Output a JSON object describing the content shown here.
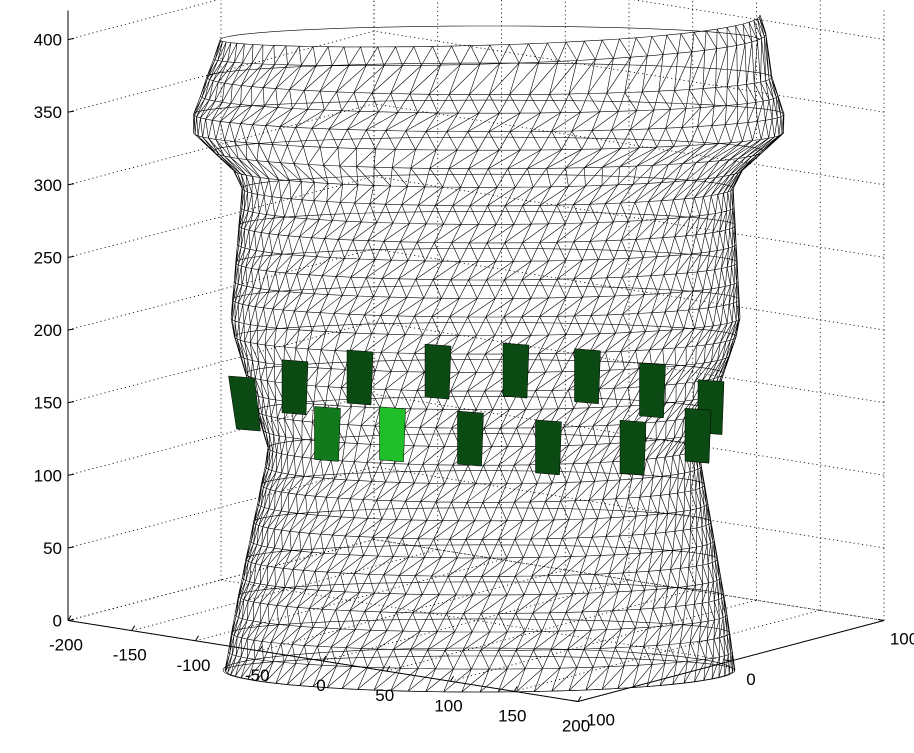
{
  "chart_data": {
    "type": "3d-wireframe-surface",
    "title": "",
    "xlabel": "",
    "ylabel": "",
    "zlabel": "",
    "grid": true,
    "xlim": [
      -200,
      200
    ],
    "ylim": [
      -100,
      100
    ],
    "zlim": [
      0,
      420
    ],
    "x_ticks": [
      -200,
      -150,
      -100,
      -50,
      0,
      50,
      100,
      150,
      200
    ],
    "y_ticks": [
      -100,
      0,
      100
    ],
    "z_ticks": [
      0,
      50,
      100,
      150,
      200,
      250,
      300,
      350,
      400
    ],
    "mesh_color": "#000000",
    "patch_colors": {
      "dark": "#0b4a12",
      "medium": "#127a1c",
      "bright": "#1fbf2a"
    },
    "patches_upper_row": [
      {
        "x": -185,
        "z": 185,
        "shade": "dark"
      },
      {
        "x": -150,
        "z": 195,
        "shade": "dark"
      },
      {
        "x": -100,
        "z": 200,
        "shade": "dark"
      },
      {
        "x": -40,
        "z": 202,
        "shade": "dark"
      },
      {
        "x": 20,
        "z": 202,
        "shade": "dark"
      },
      {
        "x": 75,
        "z": 200,
        "shade": "dark"
      },
      {
        "x": 125,
        "z": 192,
        "shade": "dark"
      },
      {
        "x": 170,
        "z": 182,
        "shade": "dark"
      }
    ],
    "patches_lower_row": [
      {
        "x": -125,
        "z": 162,
        "shade": "medium"
      },
      {
        "x": -75,
        "z": 160,
        "shade": "bright"
      },
      {
        "x": -15,
        "z": 155,
        "shade": "dark"
      },
      {
        "x": 45,
        "z": 150,
        "shade": "dark"
      },
      {
        "x": 110,
        "z": 152,
        "shade": "dark"
      },
      {
        "x": 160,
        "z": 162,
        "shade": "dark"
      }
    ]
  }
}
